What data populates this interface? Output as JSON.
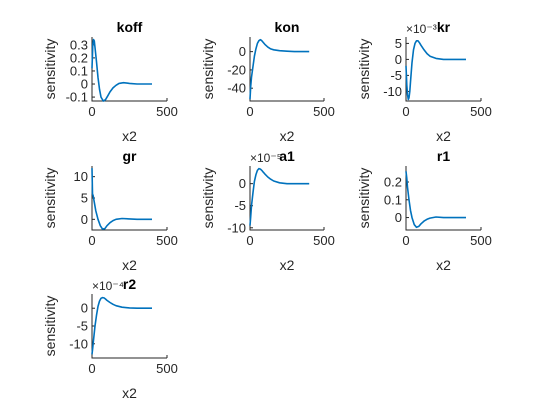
{
  "colors": {
    "series": "#0072bd",
    "axis": "#262626",
    "background": "#ffffff"
  },
  "chart_data": [
    {
      "type": "line",
      "title": "koff",
      "xlabel": "x2",
      "ylabel": "sensitivity",
      "xlim": [
        0,
        500
      ],
      "ylim": [
        -0.13,
        0.36
      ],
      "grid": false,
      "xticks": [
        0,
        500
      ],
      "xtick_labels": [
        "0",
        "500"
      ],
      "yticks": [
        -0.1,
        0,
        0.1,
        0.2,
        0.3
      ],
      "ytick_labels": [
        "-0.1",
        "0",
        "0.1",
        "0.2",
        "0.3"
      ],
      "exponent": "",
      "series": [
        {
          "x": [
            0,
            5,
            10,
            15,
            20,
            30,
            40,
            50,
            60,
            75,
            90,
            105,
            120,
            140,
            160,
            180,
            210,
            250,
            300,
            350,
            400
          ],
          "y": [
            0.12,
            0.3,
            0.34,
            0.33,
            0.28,
            0.17,
            0.05,
            -0.04,
            -0.1,
            -0.13,
            -0.12,
            -0.09,
            -0.06,
            -0.03,
            -0.01,
            0.005,
            0.01,
            0.005,
            0.0,
            0.0,
            0.0
          ]
        }
      ]
    },
    {
      "type": "line",
      "title": "kon",
      "xlabel": "x2",
      "ylabel": "sensitivity",
      "xlim": [
        0,
        500
      ],
      "ylim": [
        -54,
        16
      ],
      "grid": false,
      "xticks": [
        0,
        500
      ],
      "xtick_labels": [
        "0",
        "500"
      ],
      "yticks": [
        -40,
        -20,
        0
      ],
      "ytick_labels": [
        "-40",
        "-20",
        "0"
      ],
      "exponent": "",
      "series": [
        {
          "x": [
            0,
            5,
            10,
            20,
            30,
            40,
            50,
            60,
            70,
            80,
            90,
            100,
            120,
            140,
            160,
            200,
            250,
            300,
            350,
            400
          ],
          "y": [
            -52,
            -38,
            -28,
            -16,
            -5,
            3,
            9,
            12,
            13,
            12,
            10,
            8,
            5,
            3,
            2,
            1,
            0.5,
            0,
            0,
            0
          ]
        }
      ]
    },
    {
      "type": "line",
      "title": "kr",
      "xlabel": "x2",
      "ylabel": "sensitivity",
      "xlim": [
        0,
        500
      ],
      "ylim": [
        -13,
        7
      ],
      "grid": false,
      "xticks": [
        0,
        500
      ],
      "xtick_labels": [
        "0",
        "500"
      ],
      "yticks": [
        -10,
        -5,
        0,
        5
      ],
      "ytick_labels": [
        "-10",
        "-5",
        "0",
        "5"
      ],
      "exponent": "×10⁻³",
      "series": [
        {
          "x": [
            0,
            5,
            10,
            15,
            20,
            25,
            30,
            40,
            50,
            60,
            70,
            80,
            90,
            100,
            120,
            140,
            160,
            200,
            250,
            300,
            350,
            400
          ],
          "y": [
            -2,
            -8,
            -11,
            -12.5,
            -12,
            -10,
            -7,
            -1,
            3,
            5,
            5.8,
            5.8,
            5.2,
            4.4,
            3,
            1.8,
            1,
            0.3,
            0,
            0,
            0,
            0
          ]
        }
      ]
    },
    {
      "type": "line",
      "title": "gr",
      "xlabel": "x2",
      "ylabel": "sensitivity",
      "xlim": [
        0,
        500
      ],
      "ylim": [
        -2.5,
        12.5
      ],
      "grid": false,
      "xticks": [
        0,
        500
      ],
      "xtick_labels": [
        "0",
        "500"
      ],
      "yticks": [
        0,
        5,
        10
      ],
      "ytick_labels": [
        "0",
        "5",
        "10"
      ],
      "exponent": "",
      "series": [
        {
          "x": [
            0,
            3,
            8,
            15,
            25,
            40,
            55,
            70,
            85,
            100,
            120,
            140,
            160,
            200,
            250,
            300,
            350,
            400
          ],
          "y": [
            12,
            6,
            5.5,
            4,
            2,
            0,
            -1.5,
            -2.3,
            -2.2,
            -1.5,
            -0.8,
            -0.3,
            0,
            0.2,
            0.1,
            0,
            0,
            0
          ]
        }
      ]
    },
    {
      "type": "line",
      "title": "a1",
      "xlabel": "x2",
      "ylabel": "sensitivity",
      "xlim": [
        0,
        500
      ],
      "ylim": [
        -10.5,
        4
      ],
      "grid": false,
      "xticks": [
        0,
        500
      ],
      "xtick_labels": [
        "0",
        "500"
      ],
      "yticks": [
        -10,
        -5,
        0
      ],
      "ytick_labels": [
        "-10",
        "-5",
        "0"
      ],
      "exponent": "×10⁻⁵",
      "series": [
        {
          "x": [
            0,
            5,
            10,
            20,
            30,
            40,
            50,
            60,
            70,
            80,
            90,
            100,
            120,
            140,
            160,
            200,
            250,
            300,
            350,
            400
          ],
          "y": [
            -9.5,
            -7.5,
            -5,
            -2,
            0.5,
            2,
            3,
            3.4,
            3.3,
            3,
            2.6,
            2.2,
            1.5,
            1,
            0.6,
            0.2,
            0,
            0,
            0,
            0
          ]
        }
      ]
    },
    {
      "type": "line",
      "title": "r1",
      "xlabel": "x2",
      "ylabel": "sensitivity",
      "xlim": [
        0,
        500
      ],
      "ylim": [
        -0.07,
        0.29
      ],
      "grid": false,
      "xticks": [
        0,
        500
      ],
      "xtick_labels": [
        "0",
        "500"
      ],
      "yticks": [
        0,
        0.1,
        0.2
      ],
      "ytick_labels": [
        "0",
        "0.1",
        "0.2"
      ],
      "exponent": "",
      "series": [
        {
          "x": [
            0,
            5,
            10,
            20,
            30,
            40,
            55,
            70,
            85,
            100,
            120,
            140,
            160,
            200,
            250,
            300,
            350,
            400
          ],
          "y": [
            0.26,
            0.22,
            0.17,
            0.1,
            0.04,
            0.0,
            -0.04,
            -0.055,
            -0.05,
            -0.035,
            -0.02,
            -0.01,
            -0.003,
            0.003,
            0.0,
            0,
            0,
            0
          ]
        }
      ]
    },
    {
      "type": "line",
      "title": "r2",
      "xlabel": "x2",
      "ylabel": "sensitivity",
      "xlim": [
        0,
        500
      ],
      "ylim": [
        -14,
        4
      ],
      "grid": false,
      "xticks": [
        0,
        500
      ],
      "xtick_labels": [
        "0",
        "500"
      ],
      "yticks": [
        -10,
        -5,
        0
      ],
      "ytick_labels": [
        "-10",
        "-5",
        "0"
      ],
      "exponent": "×10⁻⁴",
      "series": [
        {
          "x": [
            0,
            5,
            10,
            20,
            30,
            40,
            50,
            60,
            70,
            80,
            90,
            100,
            120,
            140,
            160,
            200,
            250,
            300,
            350,
            400
          ],
          "y": [
            -13,
            -11,
            -9,
            -5,
            -2,
            0.5,
            2,
            2.8,
            3,
            2.9,
            2.6,
            2.2,
            1.6,
            1.1,
            0.7,
            0.3,
            0.1,
            0,
            0,
            0
          ]
        }
      ]
    }
  ]
}
